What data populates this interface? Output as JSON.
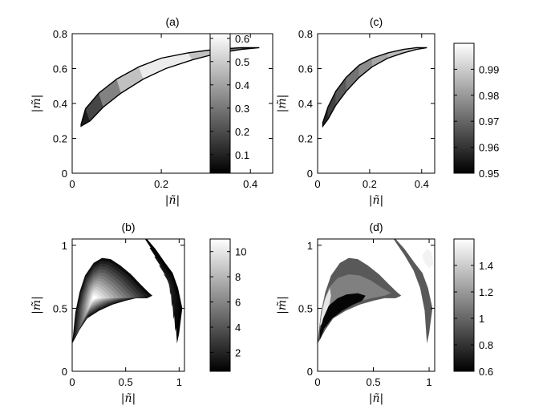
{
  "chart_data": [
    {
      "panel": "a",
      "type": "heatmap",
      "title": "(a)",
      "xlabel": "|ñ|",
      "ylabel": "|m̃|",
      "xlim": [
        0,
        0.45
      ],
      "ylim": [
        0,
        0.8
      ],
      "xticks": [
        0,
        0.2,
        0.4
      ],
      "xtick_labels": [
        "0",
        "0.2",
        "0.4"
      ],
      "yticks": [
        0,
        0.2,
        0.4,
        0.6,
        0.8
      ],
      "ytick_labels": [
        "0",
        "0.2",
        "0.4",
        "0.6",
        "0.8"
      ],
      "colorbar": {
        "range": [
          0.02,
          0.62
        ],
        "ticks": [
          0.1,
          0.2,
          0.3,
          0.4,
          0.5,
          0.6
        ],
        "tick_labels": [
          "0.1",
          "0.2",
          "0.3",
          "0.4",
          "0.5",
          "0.6"
        ]
      },
      "region": {
        "upper": [
          [
            0.02,
            0.28
          ],
          [
            0.03,
            0.37
          ],
          [
            0.06,
            0.46
          ],
          [
            0.1,
            0.54
          ],
          [
            0.15,
            0.61
          ],
          [
            0.2,
            0.66
          ],
          [
            0.26,
            0.69
          ],
          [
            0.32,
            0.71
          ],
          [
            0.38,
            0.72
          ],
          [
            0.42,
            0.72
          ]
        ],
        "lower": [
          [
            0.02,
            0.27
          ],
          [
            0.04,
            0.3
          ],
          [
            0.07,
            0.38
          ],
          [
            0.11,
            0.46
          ],
          [
            0.16,
            0.54
          ],
          [
            0.21,
            0.6
          ],
          [
            0.27,
            0.65
          ],
          [
            0.33,
            0.69
          ],
          [
            0.38,
            0.71
          ],
          [
            0.42,
            0.72
          ]
        ],
        "values": [
          0.05,
          0.12,
          0.25,
          0.4,
          0.55,
          0.6,
          0.55,
          0.4,
          0.2,
          0.08
        ]
      }
    },
    {
      "panel": "c",
      "type": "heatmap",
      "title": "(c)",
      "xlabel": "|ñ|",
      "ylabel": "|m̃|",
      "xlim": [
        0,
        0.45
      ],
      "ylim": [
        0,
        0.8
      ],
      "xticks": [
        0,
        0.2,
        0.4
      ],
      "xtick_labels": [
        "0",
        "0.2",
        "0.4"
      ],
      "yticks": [
        0,
        0.2,
        0.4,
        0.6,
        0.8
      ],
      "ytick_labels": [
        "0",
        "0.2",
        "0.4",
        "0.6",
        "0.8"
      ],
      "colorbar": {
        "range": [
          0.95,
          1.0
        ],
        "ticks": [
          0.95,
          0.96,
          0.97,
          0.98,
          0.99
        ],
        "tick_labels": [
          "0.95",
          "0.96",
          "0.97",
          "0.98",
          "0.99"
        ]
      },
      "region": {
        "upper": [
          [
            0.02,
            0.29
          ],
          [
            0.04,
            0.38
          ],
          [
            0.07,
            0.47
          ],
          [
            0.11,
            0.55
          ],
          [
            0.16,
            0.62
          ],
          [
            0.21,
            0.66
          ],
          [
            0.27,
            0.69
          ],
          [
            0.33,
            0.71
          ],
          [
            0.38,
            0.72
          ],
          [
            0.42,
            0.72
          ]
        ],
        "lower": [
          [
            0.02,
            0.27
          ],
          [
            0.04,
            0.31
          ],
          [
            0.07,
            0.39
          ],
          [
            0.11,
            0.47
          ],
          [
            0.16,
            0.55
          ],
          [
            0.21,
            0.61
          ],
          [
            0.27,
            0.66
          ],
          [
            0.33,
            0.69
          ],
          [
            0.38,
            0.71
          ],
          [
            0.42,
            0.72
          ]
        ],
        "values": [
          0.955,
          0.96,
          0.965,
          0.97,
          0.975,
          0.98,
          0.985,
          0.988,
          0.99,
          0.995
        ]
      }
    },
    {
      "panel": "b",
      "type": "heatmap",
      "title": "(b)",
      "xlabel": "|ñ|",
      "ylabel": "|m̃|",
      "xlim": [
        0,
        1.05
      ],
      "ylim": [
        0,
        1.05
      ],
      "xticks": [
        0,
        0.5,
        1
      ],
      "xtick_labels": [
        "0",
        "0.5",
        "1"
      ],
      "yticks": [
        0,
        0.5,
        1
      ],
      "ytick_labels": [
        "0",
        "0.5",
        "1"
      ],
      "colorbar": {
        "range": [
          0.5,
          11
        ],
        "ticks": [
          2,
          4,
          6,
          8,
          10
        ],
        "tick_labels": [
          "2",
          "4",
          "6",
          "8",
          "10"
        ]
      },
      "region_main": {
        "outline": [
          [
            0.0,
            0.22
          ],
          [
            0.03,
            0.47
          ],
          [
            0.07,
            0.63
          ],
          [
            0.12,
            0.76
          ],
          [
            0.2,
            0.86
          ],
          [
            0.28,
            0.9
          ],
          [
            0.36,
            0.89
          ],
          [
            0.45,
            0.84
          ],
          [
            0.55,
            0.77
          ],
          [
            0.64,
            0.69
          ],
          [
            0.71,
            0.63
          ],
          [
            0.75,
            0.6
          ],
          [
            0.7,
            0.58
          ],
          [
            0.6,
            0.58
          ],
          [
            0.5,
            0.56
          ],
          [
            0.38,
            0.53
          ],
          [
            0.25,
            0.48
          ],
          [
            0.14,
            0.42
          ],
          [
            0.07,
            0.33
          ],
          [
            0.02,
            0.25
          ]
        ],
        "value_range": [
          1,
          11
        ]
      },
      "region_side": {
        "outline": [
          [
            0.7,
            1.05
          ],
          [
            0.78,
            0.97
          ],
          [
            0.87,
            0.86
          ],
          [
            0.94,
            0.78
          ],
          [
            0.99,
            0.66
          ],
          [
            1.03,
            0.5
          ],
          [
            1.0,
            0.3
          ],
          [
            0.98,
            0.22
          ],
          [
            0.96,
            0.48
          ],
          [
            0.92,
            0.66
          ],
          [
            0.86,
            0.8
          ],
          [
            0.78,
            0.92
          ],
          [
            0.68,
            1.05
          ]
        ],
        "value_range": [
          0.5,
          2
        ]
      }
    },
    {
      "panel": "d",
      "type": "heatmap",
      "title": "(d)",
      "xlabel": "|ñ|",
      "ylabel": "|m̃|",
      "xlim": [
        0,
        1.05
      ],
      "ylim": [
        0,
        1.05
      ],
      "xticks": [
        0,
        0.5,
        1
      ],
      "xtick_labels": [
        "0",
        "0.5",
        "1"
      ],
      "yticks": [
        0,
        0.5,
        1
      ],
      "ytick_labels": [
        "0",
        "0.5",
        "1"
      ],
      "colorbar": {
        "range": [
          0.6,
          1.6
        ],
        "ticks": [
          0.6,
          0.8,
          1,
          1.2,
          1.4
        ],
        "tick_labels": [
          "0.6",
          "0.8",
          "1",
          "1.2",
          "1.4"
        ]
      },
      "bands": [
        {
          "value": 0.95,
          "outline": [
            [
              0.0,
              0.22
            ],
            [
              0.03,
              0.47
            ],
            [
              0.07,
              0.63
            ],
            [
              0.12,
              0.76
            ],
            [
              0.2,
              0.86
            ],
            [
              0.28,
              0.9
            ],
            [
              0.36,
              0.89
            ],
            [
              0.45,
              0.84
            ],
            [
              0.55,
              0.77
            ],
            [
              0.64,
              0.69
            ],
            [
              0.71,
              0.63
            ],
            [
              0.75,
              0.6
            ],
            [
              0.7,
              0.58
            ],
            [
              0.6,
              0.58
            ],
            [
              0.5,
              0.56
            ],
            [
              0.38,
              0.53
            ],
            [
              0.25,
              0.48
            ],
            [
              0.14,
              0.42
            ],
            [
              0.07,
              0.33
            ],
            [
              0.02,
              0.25
            ]
          ]
        },
        {
          "value": 1.1,
          "outline": [
            [
              0.02,
              0.4
            ],
            [
              0.05,
              0.55
            ],
            [
              0.1,
              0.66
            ],
            [
              0.18,
              0.74
            ],
            [
              0.28,
              0.77
            ],
            [
              0.38,
              0.76
            ],
            [
              0.48,
              0.72
            ],
            [
              0.58,
              0.66
            ],
            [
              0.66,
              0.62
            ],
            [
              0.6,
              0.6
            ],
            [
              0.48,
              0.58
            ],
            [
              0.36,
              0.55
            ],
            [
              0.24,
              0.5
            ],
            [
              0.12,
              0.43
            ],
            [
              0.05,
              0.36
            ]
          ]
        },
        {
          "value": 1.5,
          "outline": [
            [
              0.02,
              0.36
            ],
            [
              0.04,
              0.48
            ],
            [
              0.07,
              0.58
            ],
            [
              0.11,
              0.66
            ],
            [
              0.12,
              0.6
            ],
            [
              0.1,
              0.5
            ],
            [
              0.06,
              0.4
            ]
          ]
        },
        {
          "value": 0.62,
          "outline": [
            [
              0.02,
              0.25
            ],
            [
              0.06,
              0.34
            ],
            [
              0.13,
              0.42
            ],
            [
              0.22,
              0.48
            ],
            [
              0.32,
              0.53
            ],
            [
              0.4,
              0.56
            ],
            [
              0.43,
              0.6
            ],
            [
              0.36,
              0.62
            ],
            [
              0.26,
              0.61
            ],
            [
              0.18,
              0.58
            ],
            [
              0.1,
              0.52
            ],
            [
              0.05,
              0.42
            ],
            [
              0.02,
              0.32
            ]
          ]
        },
        {
          "value": 0.95,
          "outline": [
            [
              0.7,
              1.05
            ],
            [
              0.78,
              0.97
            ],
            [
              0.87,
              0.86
            ],
            [
              0.94,
              0.78
            ],
            [
              0.99,
              0.66
            ],
            [
              1.03,
              0.5
            ],
            [
              1.0,
              0.3
            ],
            [
              0.98,
              0.22
            ],
            [
              0.96,
              0.48
            ],
            [
              0.92,
              0.66
            ],
            [
              0.86,
              0.8
            ],
            [
              0.78,
              0.92
            ],
            [
              0.68,
              1.05
            ]
          ]
        },
        {
          "value": 1.55,
          "outline": [
            [
              0.94,
              0.92
            ],
            [
              0.98,
              0.97
            ],
            [
              1.02,
              0.95
            ],
            [
              1.04,
              0.85
            ],
            [
              1.0,
              0.82
            ],
            [
              0.96,
              0.86
            ]
          ]
        }
      ]
    }
  ]
}
